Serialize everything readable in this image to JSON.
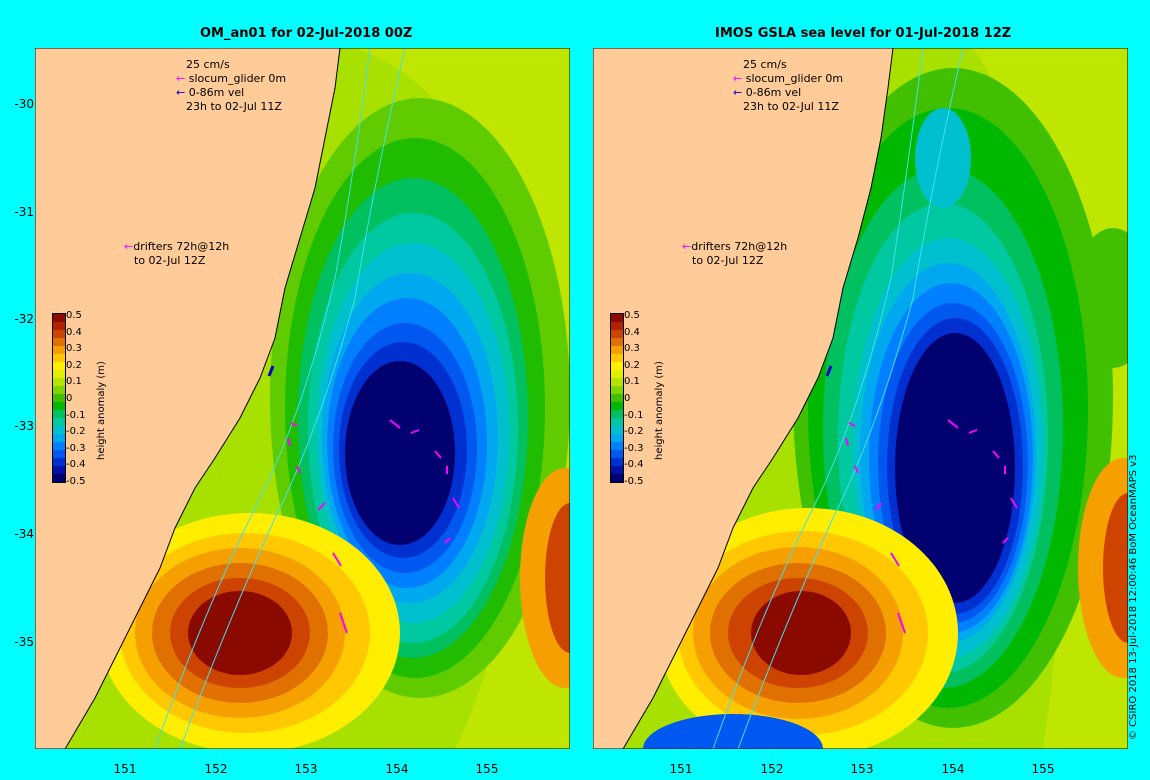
{
  "panels": [
    {
      "title": "OM_an01 for 02-Jul-2018 00Z",
      "legend_speed": "25 cm/s",
      "legend_glider": "slocum_glider 0m",
      "legend_vel": "0-86m vel",
      "legend_time": "23h to 02-Jul 11Z",
      "drifters_line1": "drifters 72h@12h",
      "drifters_line2": "to 02-Jul 12Z"
    },
    {
      "title": "IMOS GSLA sea level  for 01-Jul-2018 12Z",
      "legend_speed": "25 cm/s",
      "legend_glider": "slocum_glider 0m",
      "legend_vel": "0-86m vel",
      "legend_time": "23h to 02-Jul 11Z",
      "drifters_line1": "drifters 72h@12h",
      "drifters_line2": "to 02-Jul 12Z"
    }
  ],
  "axes": {
    "lat_ticks": [
      "-30",
      "-31",
      "-32",
      "-33",
      "-34",
      "-35"
    ],
    "lon_ticks": [
      "151",
      "152",
      "153",
      "154",
      "155"
    ]
  },
  "colorbar": {
    "label": "height anomaly (m)",
    "ticks": [
      "0.5",
      "0.4",
      "0.3",
      "0.2",
      "0.1",
      "0",
      "-0.1",
      "-0.2",
      "-0.3",
      "-0.4",
      "-0.5"
    ],
    "colors": [
      "#8b0a00",
      "#b02200",
      "#cc4400",
      "#e07000",
      "#f5a000",
      "#ffc800",
      "#ffee00",
      "#e0f000",
      "#b4e400",
      "#80d400",
      "#40c000",
      "#00b800",
      "#00c060",
      "#00c8a0",
      "#00c0d0",
      "#00a8f0",
      "#0080ff",
      "#0058f0",
      "#0030d0",
      "#0010a8",
      "#000070"
    ]
  },
  "copyright": "© CSIRO 2018  13-Jul-2018 12:00:46 BoM OceanMAPS v3"
}
